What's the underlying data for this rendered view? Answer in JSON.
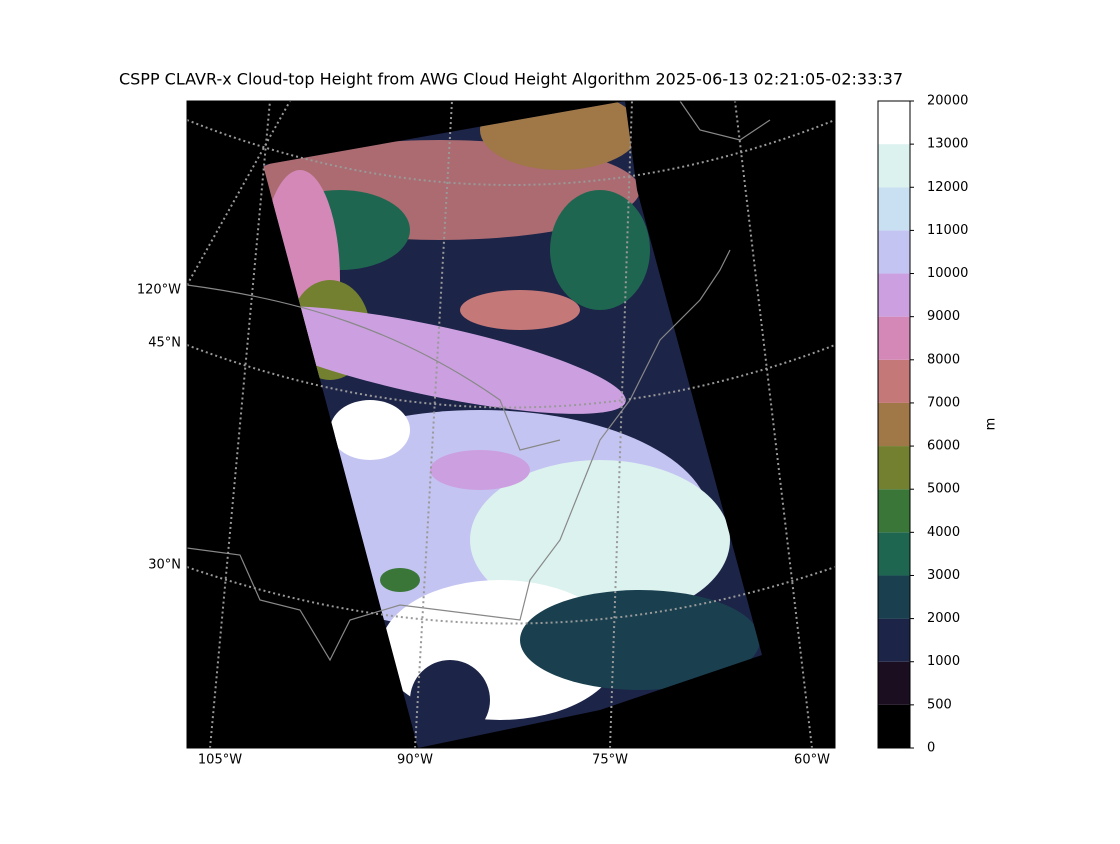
{
  "title": "CSPP CLAVR-x Cloud-top Height from AWG Cloud Height Algorithm 2025-06-13 02:21:05-02:33:37",
  "map": {
    "left_labels": [
      "120°W",
      "45°N",
      "30°N"
    ],
    "bottom_labels": [
      "105°W",
      "90°W",
      "75°W",
      "60°W"
    ]
  },
  "colorbar": {
    "label": "m",
    "ticks": [
      0,
      500,
      1000,
      2000,
      3000,
      4000,
      5000,
      6000,
      7000,
      8000,
      9000,
      10000,
      11000,
      12000,
      13000,
      20000
    ],
    "colors": [
      "#000000",
      "#1a0e20",
      "#1c2448",
      "#1a4050",
      "#1e6650",
      "#3a7638",
      "#728030",
      "#a07848",
      "#c47878",
      "#d488b8",
      "#cca0e0",
      "#c4c4f2",
      "#c9dff2",
      "#dcf2ee",
      "#ffffff"
    ]
  }
}
